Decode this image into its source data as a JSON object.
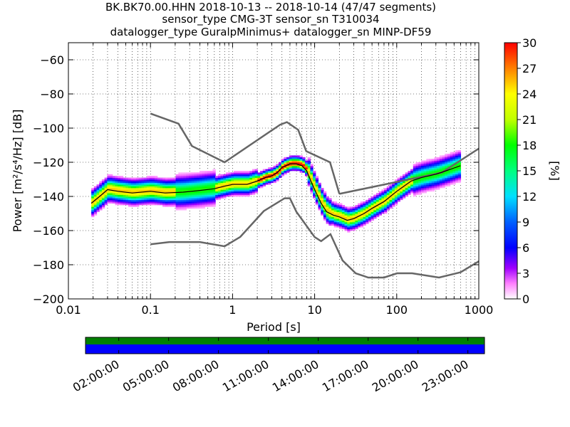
{
  "title": {
    "line1": "BK.BK70.00.HHN   2018-10-13 -- 2018-10-14  (47/47 segments)",
    "line2": "sensor_type CMG-3T sensor_sn T310034",
    "line3": "datalogger_type GuralpMinimus+ datalogger_sn MINP-DF59"
  },
  "chart_data": [
    {
      "type": "heatmap",
      "xlabel": "Period [s]",
      "ylabel": "Power [m²/s⁴/Hz] [dB]",
      "xscale": "log",
      "xlim": [
        0.01,
        1000
      ],
      "ylim": [
        -200,
        -50
      ],
      "xticks": [
        "0.01",
        "0.1",
        "1",
        "10",
        "100",
        "1000"
      ],
      "yticks": [
        -60,
        -80,
        -100,
        -120,
        -140,
        -160,
        -180,
        -200
      ],
      "grid": "dotted",
      "colorbar": {
        "label": "[%]",
        "range": [
          0,
          30
        ],
        "ticks": [
          0,
          3,
          6,
          9,
          12,
          15,
          18,
          21,
          24,
          27,
          30
        ],
        "colormap": "pqlx"
      },
      "noise_models": [
        {
          "name": "new-high-noise-model",
          "color": "#666666",
          "x": [
            0.1,
            0.22,
            0.32,
            0.8,
            3.8,
            4.6,
            6.3,
            7.9,
            15.4,
            20
          ],
          "y": [
            -91.5,
            -97.4,
            -110.5,
            -120,
            -98,
            -96.5,
            -101,
            -113.5,
            -120,
            -138.5
          ]
        },
        {
          "name": "new-high-noise-model-long-period",
          "color": "#666666",
          "x": [
            20,
            354.8,
            1000
          ],
          "y": [
            -138.5,
            -126,
            -112
          ]
        },
        {
          "name": "new-low-noise-model",
          "color": "#666666",
          "x": [
            0.1,
            0.17,
            0.4,
            0.8,
            1.24,
            2.4,
            4.3,
            5,
            6,
            10,
            12,
            15.6,
            21.9,
            31.6,
            45,
            70,
            101,
            154,
            328,
            600,
            1000
          ],
          "y": [
            -168,
            -166.7,
            -166.7,
            -169.2,
            -163.7,
            -148.6,
            -141.1,
            -141.1,
            -149,
            -163.8,
            -166.2,
            -162.1,
            -177.5,
            -185,
            -187.5,
            -187.5,
            -185,
            -185,
            -187.5,
            -184.4,
            -178
          ]
        }
      ],
      "mode_curve": {
        "color": "#000000",
        "x": [
          0.019,
          0.024,
          0.03,
          0.04,
          0.06,
          0.1,
          0.15,
          0.25,
          0.4,
          0.6,
          0.8,
          1,
          1.5,
          2,
          2.5,
          3,
          3.5,
          4,
          5,
          6,
          7,
          8,
          9,
          10,
          12,
          14,
          17,
          20,
          25,
          30,
          40,
          50,
          70,
          100,
          150,
          200,
          300,
          400,
          600
        ],
        "y": [
          -144,
          -140,
          -136,
          -137,
          -138,
          -137,
          -138,
          -137.5,
          -136.5,
          -135.5,
          -134,
          -133,
          -133,
          -131,
          -129,
          -128,
          -126,
          -123,
          -121,
          -121,
          -122,
          -125,
          -131,
          -136,
          -144,
          -149,
          -151,
          -152,
          -154,
          -153,
          -150,
          -147,
          -143,
          -137,
          -131,
          -129,
          -127,
          -125,
          -122
        ]
      },
      "time_coverage": {
        "tick_labels": [
          "02:00:00",
          "05:00:00",
          "08:00:00",
          "11:00:00",
          "14:00:00",
          "17:00:00",
          "20:00:00",
          "23:00:00"
        ],
        "tick_hours": [
          2,
          5,
          8,
          11,
          14,
          17,
          20,
          23
        ],
        "range_hours": [
          0,
          24
        ],
        "data_color": "#008000",
        "gaps_color": "#0000ff",
        "coverage_fraction": 1.0
      }
    }
  ]
}
